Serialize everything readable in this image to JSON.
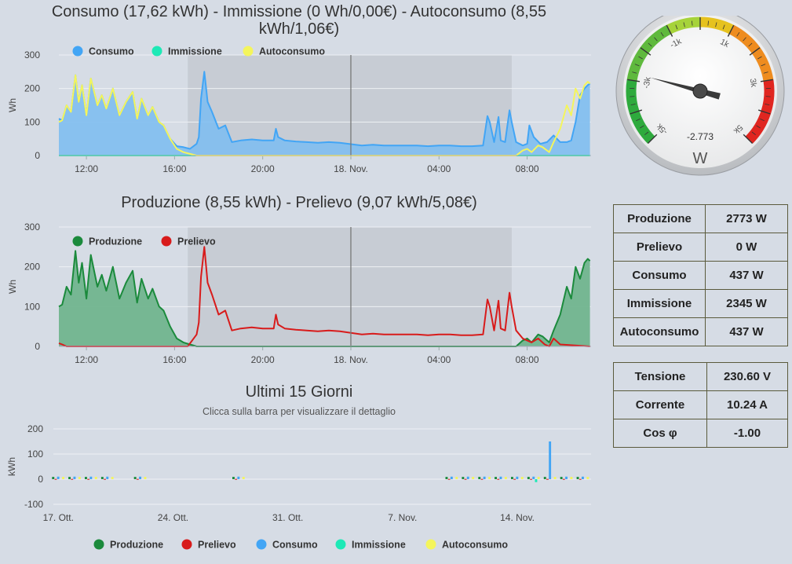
{
  "chart_data": [
    {
      "type": "area",
      "title": "Consumo (17,62 kWh) - Immissione (0 Wh/0,00€) - Autoconsumo (8,55 kWh/1,06€)",
      "title_lines": [
        "Consumo (17,62 kWh) - Immissione (0 Wh/0,00€) - Autoconsumo (8,55",
        "kWh/1,06€)"
      ],
      "ylabel": "Wh",
      "ylim": [
        0,
        300
      ],
      "yticks": [
        "0",
        "100",
        "200",
        "300"
      ],
      "x_ticks": [
        "12:00",
        "16:00",
        "20:00",
        "18. Nov.",
        "04:00",
        "08:00"
      ],
      "x_tick_hours": [
        12,
        16,
        20,
        24,
        28,
        32
      ],
      "x_range_hours": [
        10.75,
        34.9
      ],
      "night_band_hours": [
        16.6,
        31.3
      ],
      "now_line_hour": 24,
      "grid": true,
      "legend_position": "top-left",
      "series": [
        {
          "name": "Consumo",
          "color": "#42a5f5",
          "fill": "#7fbef0",
          "x": [
            10.75,
            10.9,
            11.1,
            11.3,
            11.5,
            11.65,
            11.8,
            12.0,
            12.2,
            12.5,
            12.7,
            12.9,
            13.2,
            13.5,
            13.8,
            14.1,
            14.3,
            14.5,
            14.8,
            15.0,
            15.3,
            15.5,
            15.8,
            16.1,
            16.4,
            16.7,
            17.0,
            17.1,
            17.2,
            17.35,
            17.5,
            17.7,
            18.0,
            18.3,
            18.6,
            19.0,
            19.5,
            20.0,
            20.5,
            20.6,
            20.7,
            21.0,
            21.5,
            22.0,
            22.5,
            23.0,
            23.5,
            24.0,
            24.5,
            25.0,
            25.5,
            26.0,
            26.5,
            27.0,
            27.5,
            28.0,
            28.5,
            29.0,
            29.5,
            30.0,
            30.2,
            30.3,
            30.5,
            30.7,
            30.8,
            31.0,
            31.2,
            31.3,
            31.5,
            31.8,
            32.0,
            32.1,
            32.3,
            32.6,
            32.9,
            33.2,
            33.5,
            33.8,
            34.0,
            34.2,
            34.4,
            34.6,
            34.75,
            34.85
          ],
          "y": [
            110,
            105,
            150,
            130,
            240,
            160,
            210,
            120,
            230,
            150,
            180,
            140,
            200,
            120,
            160,
            190,
            110,
            170,
            120,
            145,
            100,
            90,
            50,
            28,
            25,
            20,
            35,
            55,
            170,
            250,
            160,
            130,
            80,
            90,
            40,
            45,
            48,
            45,
            45,
            80,
            55,
            45,
            42,
            40,
            38,
            40,
            38,
            34,
            30,
            32,
            30,
            30,
            30,
            30,
            28,
            30,
            30,
            28,
            28,
            30,
            118,
            100,
            40,
            115,
            45,
            40,
            135,
            100,
            40,
            30,
            35,
            90,
            55,
            35,
            40,
            60,
            40,
            40,
            45,
            100,
            180,
            200,
            210,
            215
          ]
        },
        {
          "name": "Immissione",
          "color": "#1de9b6",
          "x": [
            10.75,
            34.85
          ],
          "y": [
            0,
            0
          ]
        },
        {
          "name": "Autoconsumo",
          "color": "#f4f55c",
          "x": [
            10.75,
            10.9,
            11.1,
            11.3,
            11.5,
            11.65,
            11.8,
            12.0,
            12.2,
            12.5,
            12.7,
            12.9,
            13.2,
            13.5,
            13.8,
            14.1,
            14.3,
            14.5,
            14.8,
            15.0,
            15.3,
            15.5,
            15.8,
            16.1,
            16.4,
            16.7,
            17.0,
            31.5,
            31.8,
            32.0,
            32.2,
            32.5,
            32.7,
            33.0,
            33.2,
            33.5,
            33.8,
            34.0,
            34.2,
            34.4,
            34.6,
            34.75,
            34.85
          ],
          "y": [
            100,
            105,
            150,
            130,
            240,
            160,
            210,
            120,
            230,
            150,
            180,
            140,
            200,
            120,
            160,
            190,
            110,
            170,
            120,
            145,
            100,
            90,
            50,
            20,
            10,
            5,
            0,
            0,
            15,
            20,
            10,
            30,
            25,
            10,
            40,
            80,
            150,
            120,
            200,
            170,
            210,
            220,
            215
          ]
        }
      ]
    },
    {
      "type": "area",
      "title": "Produzione (8,55 kWh) - Prelievo (9,07 kWh/5,08€)",
      "ylabel": "Wh",
      "ylim": [
        0,
        300
      ],
      "yticks": [
        "0",
        "100",
        "200",
        "300"
      ],
      "x_ticks": [
        "12:00",
        "16:00",
        "20:00",
        "18. Nov.",
        "04:00",
        "08:00"
      ],
      "x_tick_hours": [
        12,
        16,
        20,
        24,
        28,
        32
      ],
      "x_range_hours": [
        10.75,
        34.9
      ],
      "night_band_hours": [
        16.6,
        31.3
      ],
      "now_line_hour": 24,
      "grid": true,
      "legend_position": "top-left",
      "series": [
        {
          "name": "Produzione",
          "color": "#1b8a3c",
          "fill": "#6bb38a",
          "x": [
            10.75,
            10.9,
            11.1,
            11.3,
            11.5,
            11.65,
            11.8,
            12.0,
            12.2,
            12.5,
            12.7,
            12.9,
            13.2,
            13.5,
            13.8,
            14.1,
            14.3,
            14.5,
            14.8,
            15.0,
            15.3,
            15.5,
            15.8,
            16.1,
            16.4,
            16.7,
            17.0,
            31.5,
            31.8,
            32.0,
            32.2,
            32.5,
            32.7,
            33.0,
            33.2,
            33.5,
            33.8,
            34.0,
            34.2,
            34.4,
            34.6,
            34.75,
            34.85
          ],
          "y": [
            100,
            105,
            150,
            130,
            240,
            160,
            210,
            120,
            230,
            150,
            180,
            140,
            200,
            120,
            160,
            190,
            110,
            170,
            120,
            145,
            100,
            90,
            50,
            20,
            10,
            5,
            0,
            0,
            15,
            20,
            10,
            30,
            25,
            10,
            40,
            80,
            150,
            120,
            200,
            170,
            210,
            220,
            215
          ]
        },
        {
          "name": "Prelievo",
          "color": "#d81b1b",
          "x": [
            10.75,
            10.9,
            11.1,
            16.6,
            17.0,
            17.1,
            17.2,
            17.35,
            17.5,
            17.7,
            18.0,
            18.3,
            18.6,
            19.0,
            19.5,
            20.0,
            20.5,
            20.6,
            20.7,
            21.0,
            21.5,
            22.0,
            22.5,
            23.0,
            23.5,
            24.0,
            24.5,
            25.0,
            25.5,
            26.0,
            26.5,
            27.0,
            27.5,
            28.0,
            28.5,
            29.0,
            29.5,
            30.0,
            30.2,
            30.3,
            30.5,
            30.7,
            30.8,
            31.0,
            31.2,
            31.3,
            31.5,
            31.8,
            32.0,
            32.2,
            32.5,
            32.8,
            33.0,
            33.2,
            33.5,
            34.85
          ],
          "y": [
            8,
            5,
            0,
            0,
            30,
            60,
            175,
            250,
            160,
            130,
            80,
            90,
            40,
            45,
            48,
            45,
            45,
            80,
            55,
            45,
            42,
            40,
            38,
            40,
            38,
            34,
            30,
            32,
            30,
            30,
            30,
            30,
            28,
            30,
            30,
            28,
            28,
            30,
            118,
            100,
            40,
            115,
            45,
            40,
            135,
            100,
            40,
            20,
            15,
            10,
            20,
            5,
            0,
            20,
            5,
            0
          ]
        }
      ]
    },
    {
      "type": "bar",
      "title": "Ultimi 15 Giorni",
      "subtitle": "Clicca sulla barra per visualizzare il dettaglio",
      "ylabel": "kWh",
      "ylim": [
        -100,
        200
      ],
      "yticks": [
        "-100",
        "0",
        "100",
        "200"
      ],
      "x_ticks": [
        "17. Ott.",
        "24. Ott.",
        "31. Ott.",
        "7. Nov.",
        "14. Nov."
      ],
      "x_tick_days": [
        0,
        7,
        14,
        21,
        28
      ],
      "x_range_days": [
        -0.3,
        32.5
      ],
      "grid": true,
      "legend_position": "bottom",
      "series_names": [
        "Produzione",
        "Prelievo",
        "Consumo",
        "Immissione",
        "Autoconsumo"
      ],
      "series_colors": [
        "#1b8a3c",
        "#d81b1b",
        "#42a5f5",
        "#1de9b6",
        "#f4f55c"
      ],
      "days": [
        0,
        1,
        2,
        3,
        5,
        11,
        24,
        25,
        26,
        27,
        28,
        29,
        30,
        31,
        32
      ],
      "values": [
        [
          9,
          1,
          10,
          0,
          9
        ],
        [
          9,
          1,
          10,
          0,
          9
        ],
        [
          9,
          1,
          10,
          0,
          9
        ],
        [
          9,
          1,
          10,
          0,
          9
        ],
        [
          9,
          1,
          10,
          0,
          9
        ],
        [
          9,
          1,
          10,
          0,
          9
        ],
        [
          9,
          1,
          10,
          0,
          9
        ],
        [
          9,
          1,
          10,
          0,
          9
        ],
        [
          9,
          1,
          10,
          0,
          9
        ],
        [
          9,
          1,
          10,
          0,
          9
        ],
        [
          9,
          1,
          10,
          0,
          9
        ],
        [
          9,
          1,
          10,
          -12,
          9
        ],
        [
          9,
          1,
          150,
          0,
          9
        ],
        [
          9,
          1,
          10,
          0,
          9
        ],
        [
          9,
          1,
          10,
          0,
          9
        ]
      ]
    }
  ],
  "gauge": {
    "value": -2773,
    "display_value": "-2.773",
    "unit": "W",
    "min": -5000,
    "max": 5000,
    "major_labels": [
      "-5k",
      "-3k",
      "-1k",
      "1k",
      "3k",
      "5k"
    ],
    "bands": [
      {
        "from": -5000,
        "to": -3000,
        "color": "#2eaa3d"
      },
      {
        "from": -3000,
        "to": -1000,
        "color": "#5fb93d"
      },
      {
        "from": -1000,
        "to": 0,
        "color": "#a6d33a"
      },
      {
        "from": 0,
        "to": 1000,
        "color": "#e6c21f"
      },
      {
        "from": 1000,
        "to": 3000,
        "color": "#ee8c1f"
      },
      {
        "from": 3000,
        "to": 5000,
        "color": "#e02620"
      }
    ]
  },
  "power_table": [
    {
      "label": "Produzione",
      "value": "2773 W"
    },
    {
      "label": "Prelievo",
      "value": "0 W"
    },
    {
      "label": "Consumo",
      "value": "437 W"
    },
    {
      "label": "Immissione",
      "value": "2345 W"
    },
    {
      "label": "Autoconsumo",
      "value": "437 W"
    }
  ],
  "electrical_table": [
    {
      "label": "Tensione",
      "value": "230.60 V"
    },
    {
      "label": "Corrente",
      "value": "10.24 A"
    },
    {
      "label": "Cos φ",
      "value": "-1.00"
    }
  ]
}
